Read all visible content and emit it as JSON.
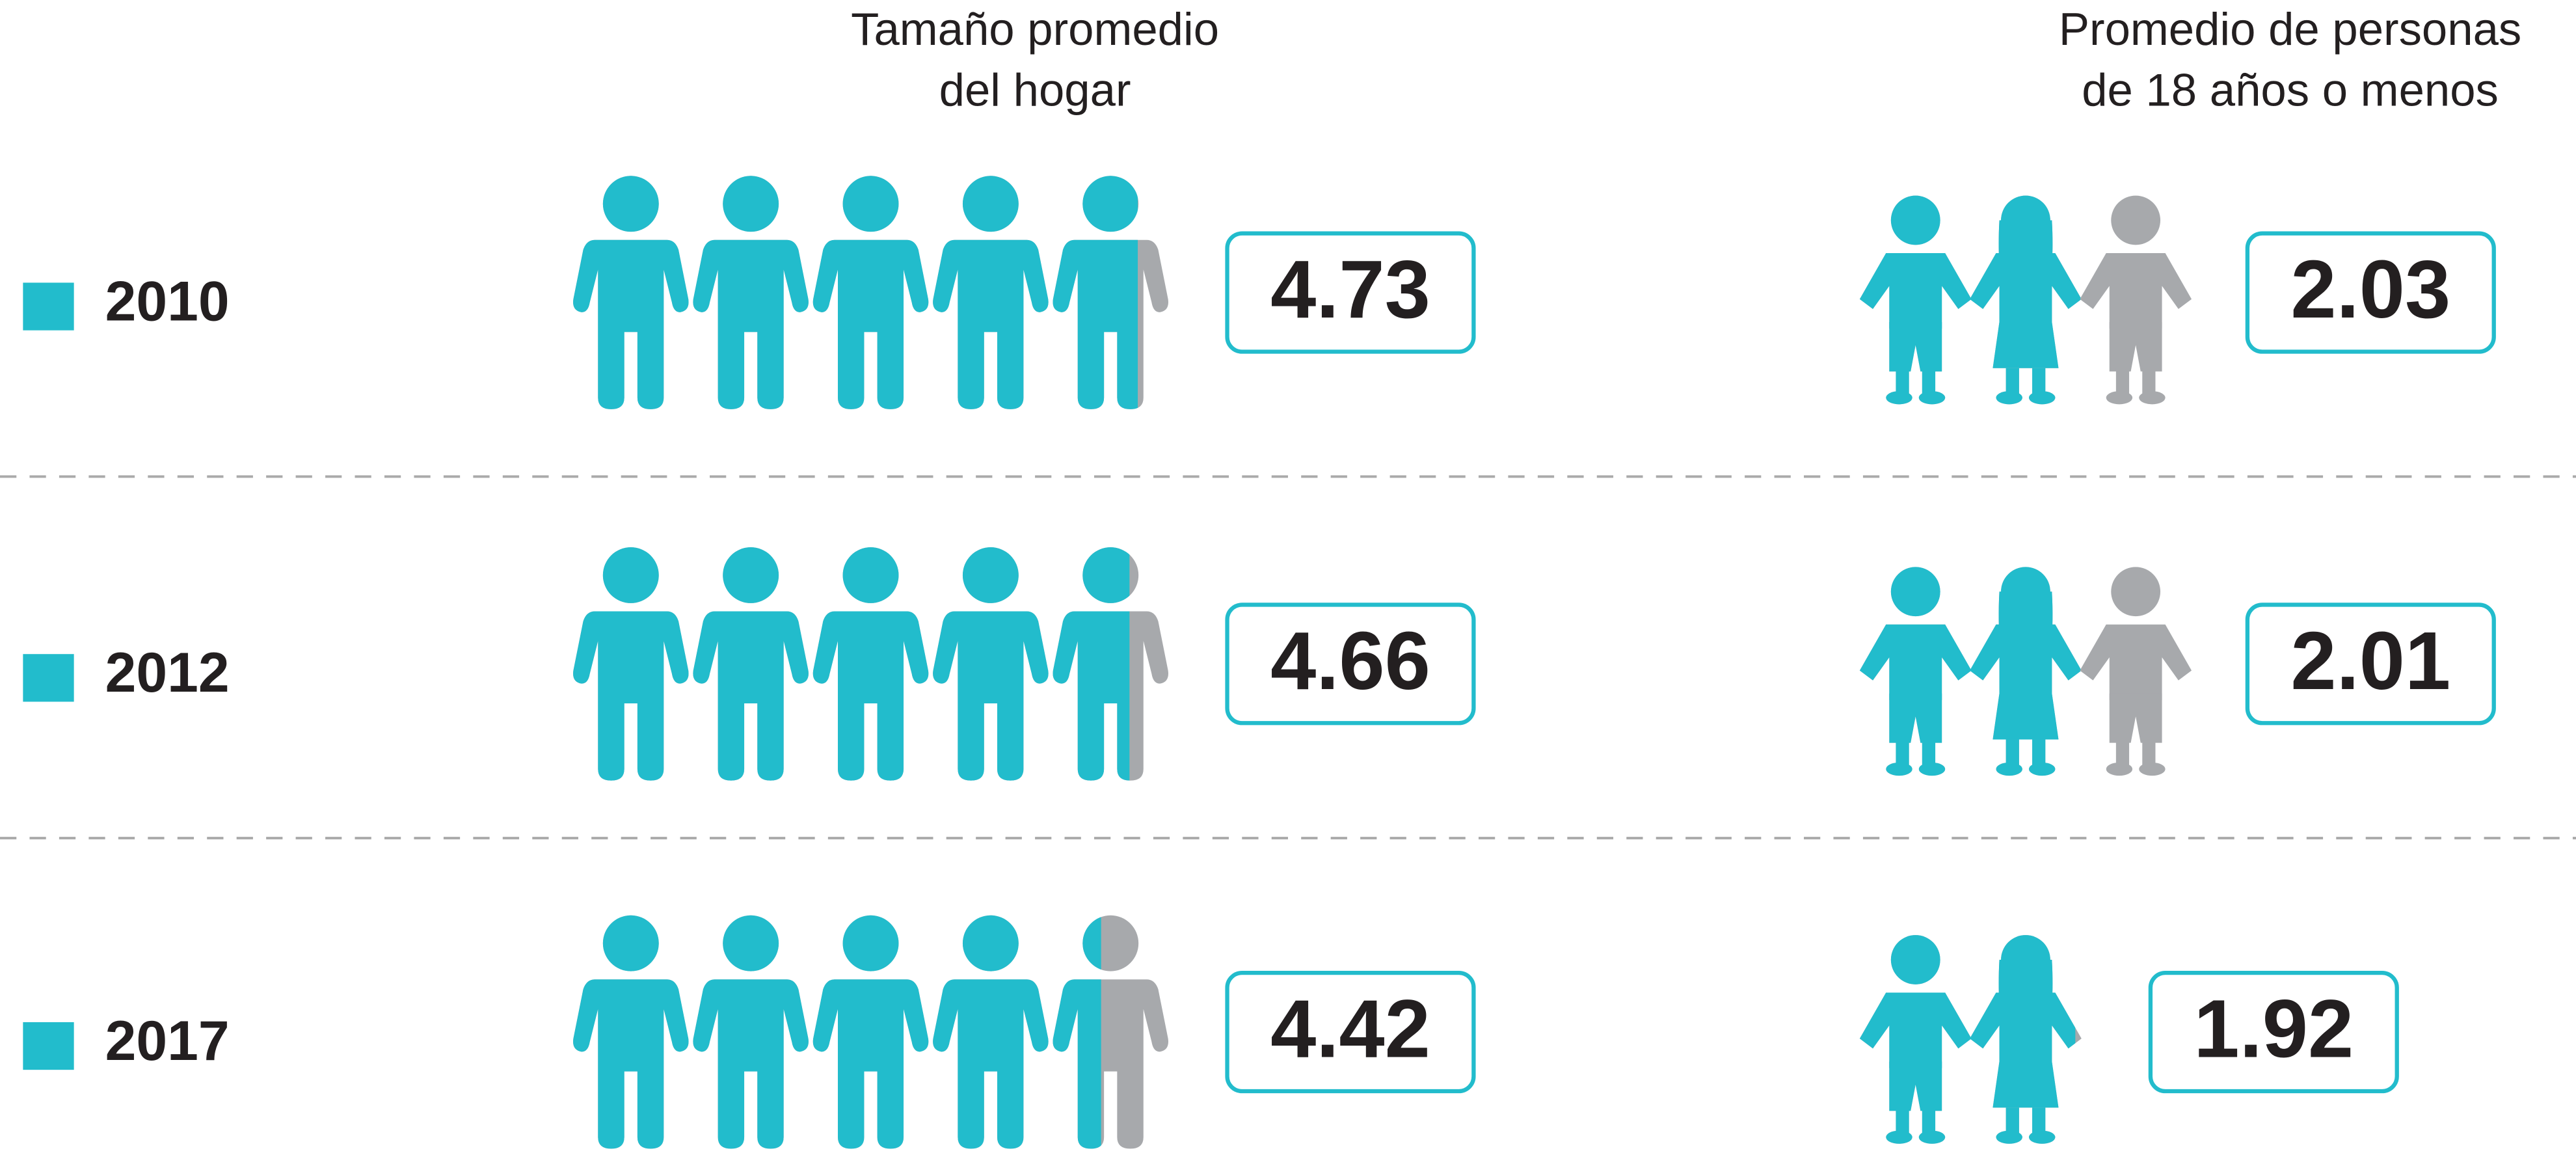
{
  "chart_data": {
    "type": "pictogram",
    "categories": [
      "2010",
      "2012",
      "2017"
    ],
    "category_color": "#22bccc",
    "empty_color": "#a7a9ac",
    "series": [
      {
        "name": [
          "Tamaño promedio",
          "del hogar"
        ],
        "icon": "adult",
        "color": "#22bccc",
        "values": [
          4.73,
          4.66,
          4.42
        ]
      },
      {
        "name": [
          "Promedio de personas",
          "de 18 años o menos"
        ],
        "icon": "child",
        "color": "#22bccc",
        "values": [
          2.03,
          2.01,
          1.92
        ]
      }
    ]
  }
}
